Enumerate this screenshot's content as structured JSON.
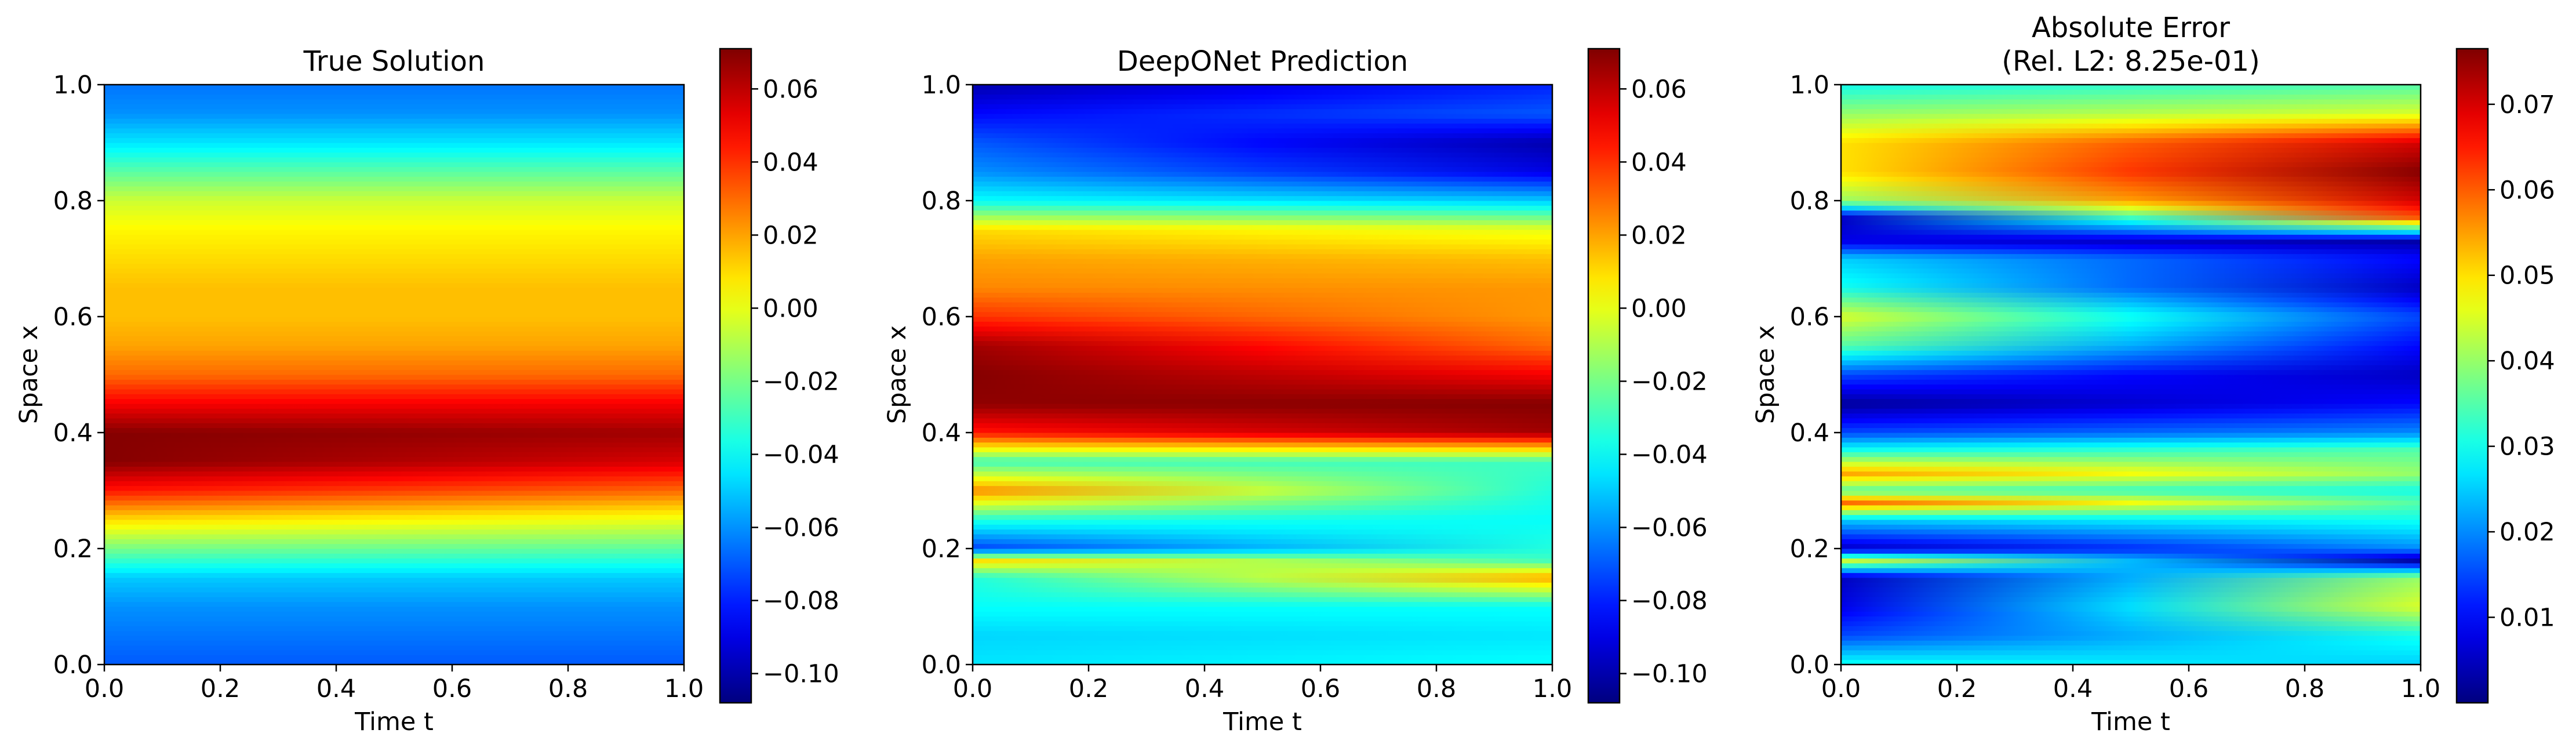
{
  "colors": {
    "jet": [
      "#00007f",
      "#0000ff",
      "#007fff",
      "#00ffff",
      "#7fff7f",
      "#ffff00",
      "#ff7f00",
      "#ff0000",
      "#7f0000"
    ],
    "axis": "#000000",
    "background": "#ffffff"
  },
  "chart_data": [
    {
      "type": "heatmap",
      "title": "True Solution",
      "xlabel": "Time t",
      "ylabel": "Space x",
      "xlim": [
        0,
        1
      ],
      "ylim": [
        0,
        1
      ],
      "xticks": [
        "0.0",
        "0.2",
        "0.4",
        "0.6",
        "0.8",
        "1.0"
      ],
      "yticks": [
        "0.0",
        "0.2",
        "0.4",
        "0.6",
        "0.8",
        "1.0"
      ],
      "colorbar": {
        "range": [
          -0.108,
          0.071
        ],
        "ticks": [
          "−0.10",
          "−0.08",
          "−0.06",
          "−0.04",
          "−0.02",
          "0.00",
          "0.02",
          "0.04",
          "0.06"
        ],
        "tick_values": [
          -0.1,
          -0.08,
          -0.06,
          -0.04,
          -0.02,
          0.0,
          0.02,
          0.04,
          0.06
        ]
      },
      "profile": {
        "x": [
          0.0,
          0.05,
          0.1,
          0.15,
          0.2,
          0.25,
          0.3,
          0.35,
          0.4,
          0.45,
          0.5,
          0.55,
          0.6,
          0.65,
          0.7,
          0.75,
          0.8,
          0.85,
          0.9,
          0.95,
          1.0
        ],
        "start": [
          -0.07,
          -0.065,
          -0.06,
          -0.05,
          -0.02,
          0.01,
          0.045,
          0.07,
          0.07,
          0.05,
          0.03,
          0.02,
          0.015,
          0.015,
          0.01,
          0.005,
          -0.005,
          -0.025,
          -0.045,
          -0.06,
          -0.065
        ],
        "end": [
          -0.07,
          -0.065,
          -0.06,
          -0.05,
          -0.025,
          0.0,
          0.03,
          0.055,
          0.065,
          0.05,
          0.03,
          0.02,
          0.015,
          0.015,
          0.01,
          0.005,
          -0.005,
          -0.025,
          -0.045,
          -0.06,
          -0.065
        ]
      }
    },
    {
      "type": "heatmap",
      "title": "DeepONet Prediction",
      "xlabel": "Time t",
      "ylabel": "Space x",
      "xlim": [
        0,
        1
      ],
      "ylim": [
        0,
        1
      ],
      "xticks": [
        "0.0",
        "0.2",
        "0.4",
        "0.6",
        "0.8",
        "1.0"
      ],
      "yticks": [
        "0.0",
        "0.2",
        "0.4",
        "0.6",
        "0.8",
        "1.0"
      ],
      "colorbar": {
        "range": [
          -0.108,
          0.071
        ],
        "ticks": [
          "−0.10",
          "−0.08",
          "−0.06",
          "−0.04",
          "−0.02",
          "0.00",
          "0.02",
          "0.04",
          "0.06"
        ],
        "tick_values": [
          -0.1,
          -0.08,
          -0.06,
          -0.04,
          -0.02,
          0.0,
          0.02,
          0.04,
          0.06
        ]
      },
      "profile": {
        "x": [
          0.0,
          0.05,
          0.1,
          0.15,
          0.18,
          0.2,
          0.25,
          0.3,
          0.35,
          0.4,
          0.45,
          0.5,
          0.55,
          0.6,
          0.65,
          0.7,
          0.75,
          0.8,
          0.85,
          0.9,
          0.95,
          1.0
        ],
        "start": [
          -0.045,
          -0.048,
          -0.04,
          -0.035,
          0.01,
          -0.075,
          -0.035,
          0.025,
          -0.03,
          0.045,
          0.068,
          0.07,
          0.065,
          0.04,
          0.025,
          0.02,
          0.01,
          -0.04,
          -0.06,
          -0.07,
          -0.085,
          -0.1
        ],
        "end": [
          -0.04,
          -0.045,
          -0.04,
          0.02,
          -0.03,
          -0.035,
          -0.04,
          -0.035,
          -0.03,
          0.065,
          0.07,
          0.05,
          0.03,
          0.022,
          0.022,
          0.015,
          0.0,
          -0.05,
          -0.09,
          -0.1,
          -0.07,
          -0.08
        ]
      }
    },
    {
      "type": "heatmap",
      "title": "Absolute Error",
      "subtitle": "(Rel. L2: 8.25e-01)",
      "xlabel": "Time t",
      "ylabel": "Space x",
      "xlim": [
        0,
        1
      ],
      "ylim": [
        0,
        1
      ],
      "xticks": [
        "0.0",
        "0.2",
        "0.4",
        "0.6",
        "0.8",
        "1.0"
      ],
      "yticks": [
        "0.0",
        "0.2",
        "0.4",
        "0.6",
        "0.8",
        "1.0"
      ],
      "colorbar": {
        "range": [
          0.0,
          0.0765
        ],
        "ticks": [
          "0.01",
          "0.02",
          "0.03",
          "0.04",
          "0.05",
          "0.06",
          "0.07"
        ],
        "tick_values": [
          0.01,
          0.02,
          0.03,
          0.04,
          0.05,
          0.06,
          0.07
        ]
      },
      "profile": {
        "x": [
          0.0,
          0.05,
          0.1,
          0.15,
          0.18,
          0.2,
          0.25,
          0.28,
          0.3,
          0.33,
          0.37,
          0.4,
          0.45,
          0.5,
          0.55,
          0.6,
          0.65,
          0.7,
          0.73,
          0.77,
          0.8,
          0.85,
          0.9,
          0.95,
          1.0
        ],
        "start": [
          0.03,
          0.015,
          0.008,
          0.005,
          0.045,
          0.005,
          0.025,
          0.06,
          0.035,
          0.055,
          0.03,
          0.015,
          0.002,
          0.015,
          0.035,
          0.045,
          0.03,
          0.025,
          0.008,
          0.005,
          0.04,
          0.05,
          0.05,
          0.04,
          0.03
        ],
        "end": [
          0.025,
          0.03,
          0.045,
          0.04,
          0.002,
          0.02,
          0.03,
          0.035,
          0.03,
          0.04,
          0.035,
          0.02,
          0.01,
          0.005,
          0.01,
          0.015,
          0.005,
          0.01,
          0.003,
          0.06,
          0.07,
          0.076,
          0.07,
          0.045,
          0.035
        ]
      }
    }
  ]
}
